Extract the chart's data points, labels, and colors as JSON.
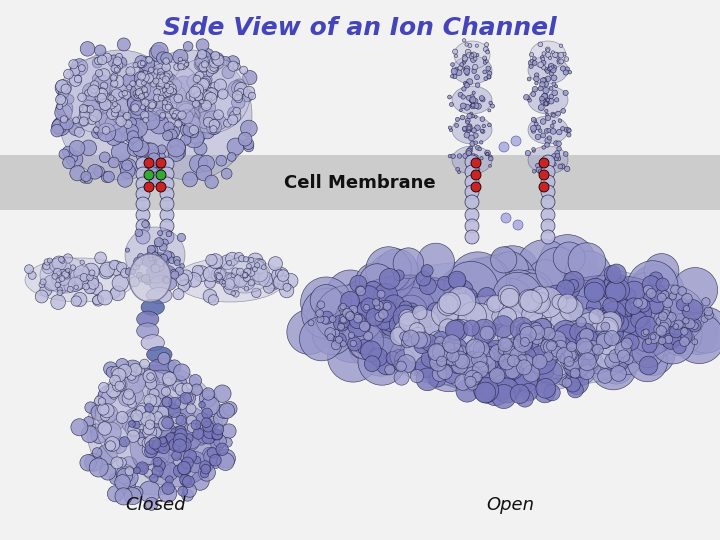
{
  "title": "Side View of an Ion Channel",
  "title_color": "#4444bb",
  "title_fontsize": 18,
  "bg_color": "#f2f2f2",
  "membrane_color": "#a8a8a8",
  "membrane_alpha": 0.5,
  "label_closed": "Closed",
  "label_open": "Open",
  "label_membrane": "Cell Membrane",
  "protein_light": "#9999cc",
  "protein_mid": "#7777bb",
  "protein_dark": "#5566aa",
  "protein_vlight": "#bbbbdd",
  "red_color": "#cc2222",
  "green_color": "#33aa33",
  "ion_color": "#aaaadd",
  "outline": "#222244"
}
